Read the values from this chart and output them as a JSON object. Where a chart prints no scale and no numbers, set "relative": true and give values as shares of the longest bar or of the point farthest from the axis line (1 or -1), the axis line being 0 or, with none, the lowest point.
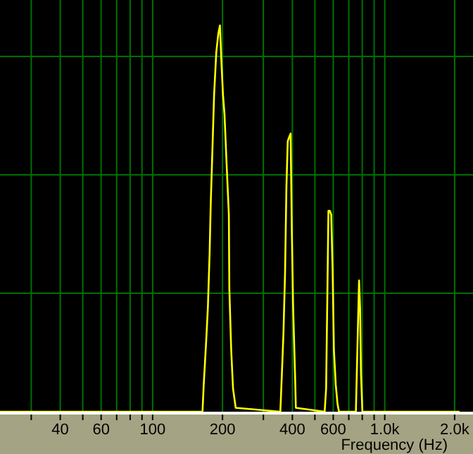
{
  "chart_data": {
    "type": "line",
    "xlabel": "Frequency (Hz)",
    "relative": true,
    "log": "x",
    "grid": true,
    "line_style": "solid",
    "xlim": [
      22,
      2400
    ],
    "xticks": [
      {
        "value": 30,
        "label": null
      },
      40,
      {
        "value": 50,
        "label": null
      },
      60,
      {
        "value": 70,
        "label": null
      },
      {
        "value": 80,
        "label": null
      },
      {
        "value": 90,
        "label": null
      },
      100,
      200,
      {
        "value": 300,
        "label": null
      },
      400,
      {
        "value": 500,
        "label": null
      },
      600,
      {
        "value": 700,
        "label": null
      },
      {
        "value": 800,
        "label": null
      },
      {
        "value": 900,
        "label": null
      },
      {
        "value": 1000,
        "label": "1.0k"
      },
      {
        "value": 2000,
        "label": "2.0k"
      }
    ],
    "series": [
      {
        "color": "#ffff00",
        "x": [
          22,
          164,
          166,
          170,
          173,
          176,
          178,
          181,
          184,
          188,
          192,
          195,
          198,
          201,
          204,
          208,
          213,
          214,
          218,
          222,
          228,
          355,
          360,
          366,
          372,
          377,
          382,
          387,
          393,
          398,
          403,
          411,
          414,
          551,
          559,
          567,
          572,
          580,
          588,
          596,
          604,
          615,
          626,
          635,
          751,
          765,
          775,
          783,
          790,
          801,
          2100
        ],
        "values": [
          0,
          0,
          0.07,
          0.18,
          0.27,
          0.41,
          0.54,
          0.68,
          0.82,
          0.93,
          0.98,
          1.0,
          0.9,
          0.82,
          0.77,
          0.65,
          0.51,
          0.32,
          0.16,
          0.06,
          0.01,
          0,
          0.09,
          0.2,
          0.36,
          0.58,
          0.7,
          0.71,
          0.72,
          0.46,
          0.27,
          0.09,
          0.01,
          0,
          0.06,
          0.34,
          0.52,
          0.52,
          0.51,
          0.37,
          0.16,
          0.07,
          0.02,
          0,
          0,
          0.2,
          0.34,
          0.27,
          0.1,
          0,
          0
        ]
      }
    ]
  }
}
